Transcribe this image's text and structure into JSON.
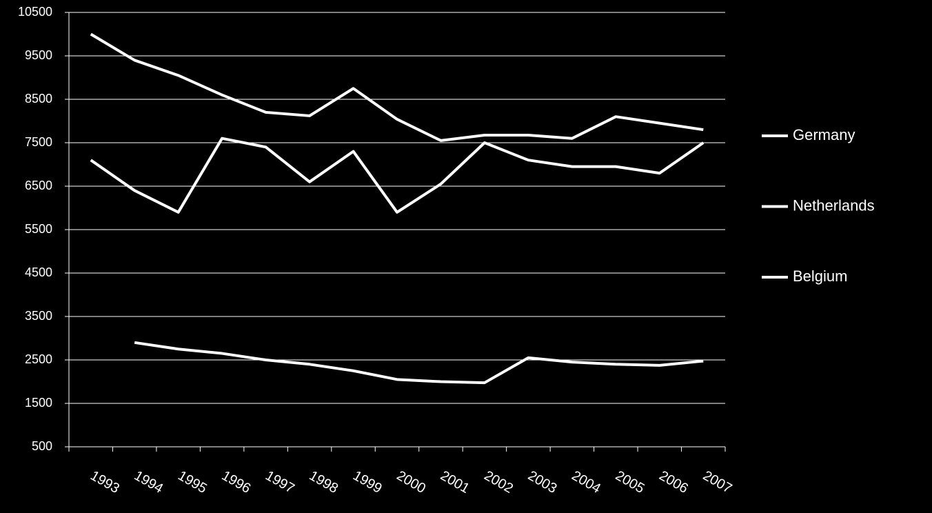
{
  "chart_data": {
    "type": "line",
    "categories": [
      "1993",
      "1994",
      "1995",
      "1996",
      "1997",
      "1998",
      "1999",
      "2000",
      "2001",
      "2002",
      "2003",
      "2004",
      "2005",
      "2006",
      "2007"
    ],
    "series": [
      {
        "name": "Germany",
        "color": "#ffffff",
        "values": [
          10000,
          9400,
          9050,
          8600,
          8200,
          8120,
          8750,
          8040,
          7550,
          7675,
          7675,
          7600,
          8100,
          7950,
          7800
        ]
      },
      {
        "name": "Netherlands",
        "color": "#ffffff",
        "values": [
          7100,
          6400,
          5900,
          7600,
          7400,
          6600,
          7300,
          5900,
          6550,
          7500,
          7100,
          6950,
          6950,
          6800,
          7500
        ]
      },
      {
        "name": "Belgium",
        "color": "#ffffff",
        "values": [
          null,
          2900,
          2750,
          2650,
          2500,
          2400,
          2250,
          2050,
          2000,
          1975,
          2550,
          2450,
          2400,
          2375,
          2475
        ]
      }
    ],
    "ylim": [
      500,
      10500
    ],
    "yticks": [
      500,
      1500,
      2500,
      3500,
      4500,
      5500,
      6500,
      7500,
      8500,
      9500,
      10500
    ],
    "grid": true,
    "legend": "right"
  }
}
